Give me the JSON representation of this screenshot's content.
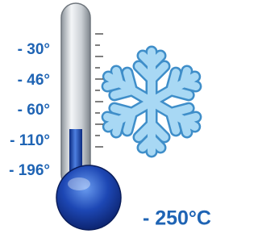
{
  "scale": {
    "labels": [
      "- 30°",
      "- 46°",
      "- 60°",
      "- 110°",
      "- 196°"
    ]
  },
  "bottom_label": "- 250°C"
}
